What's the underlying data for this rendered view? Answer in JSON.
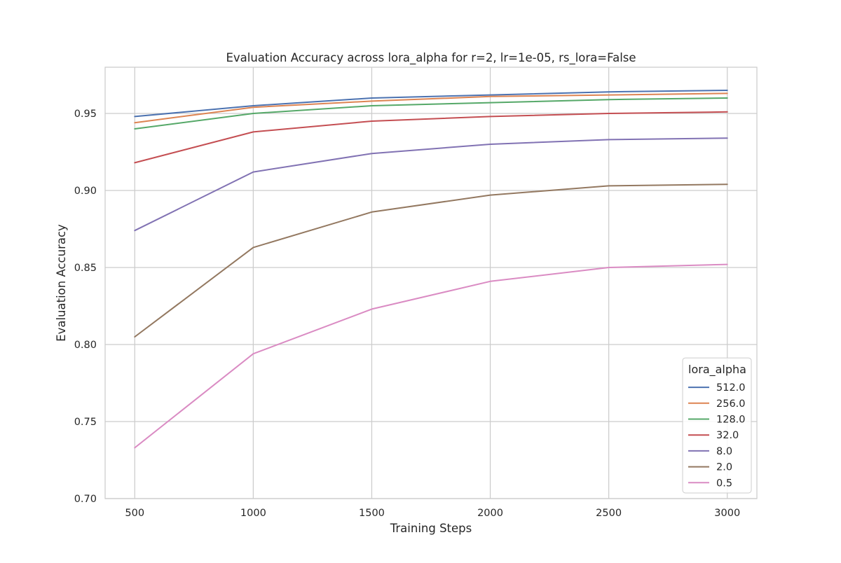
{
  "chart_data": {
    "type": "line",
    "title": "Evaluation Accuracy across lora_alpha for r=2, lr=1e-05, rs_lora=False",
    "xlabel": "Training Steps",
    "ylabel": "Evaluation Accuracy",
    "x": [
      500,
      1000,
      1500,
      2000,
      2500,
      3000
    ],
    "xticks": [
      "500",
      "1000",
      "1500",
      "2000",
      "2500",
      "3000"
    ],
    "yticks": [
      "0.70",
      "0.75",
      "0.80",
      "0.85",
      "0.90",
      "0.95"
    ],
    "ytick_values": [
      0.7,
      0.75,
      0.8,
      0.85,
      0.9,
      0.95
    ],
    "xlim": [
      375,
      3125
    ],
    "ylim": [
      0.7,
      0.98
    ],
    "grid": true,
    "legend": {
      "title": "lora_alpha",
      "position": "lower-right"
    },
    "series": [
      {
        "name": "512.0",
        "color": "#4c72b0",
        "values": [
          0.948,
          0.955,
          0.96,
          0.962,
          0.964,
          0.965
        ]
      },
      {
        "name": "256.0",
        "color": "#dd8452",
        "values": [
          0.944,
          0.954,
          0.958,
          0.961,
          0.962,
          0.963
        ]
      },
      {
        "name": "128.0",
        "color": "#55a868",
        "values": [
          0.94,
          0.95,
          0.955,
          0.957,
          0.959,
          0.96
        ]
      },
      {
        "name": "32.0",
        "color": "#c44e52",
        "values": [
          0.918,
          0.938,
          0.945,
          0.948,
          0.95,
          0.951
        ]
      },
      {
        "name": "8.0",
        "color": "#8172b3",
        "values": [
          0.874,
          0.912,
          0.924,
          0.93,
          0.933,
          0.934
        ]
      },
      {
        "name": "2.0",
        "color": "#937860",
        "values": [
          0.805,
          0.863,
          0.886,
          0.897,
          0.903,
          0.904
        ]
      },
      {
        "name": "0.5",
        "color": "#da8bc3",
        "values": [
          0.733,
          0.794,
          0.823,
          0.841,
          0.85,
          0.852
        ]
      }
    ]
  }
}
